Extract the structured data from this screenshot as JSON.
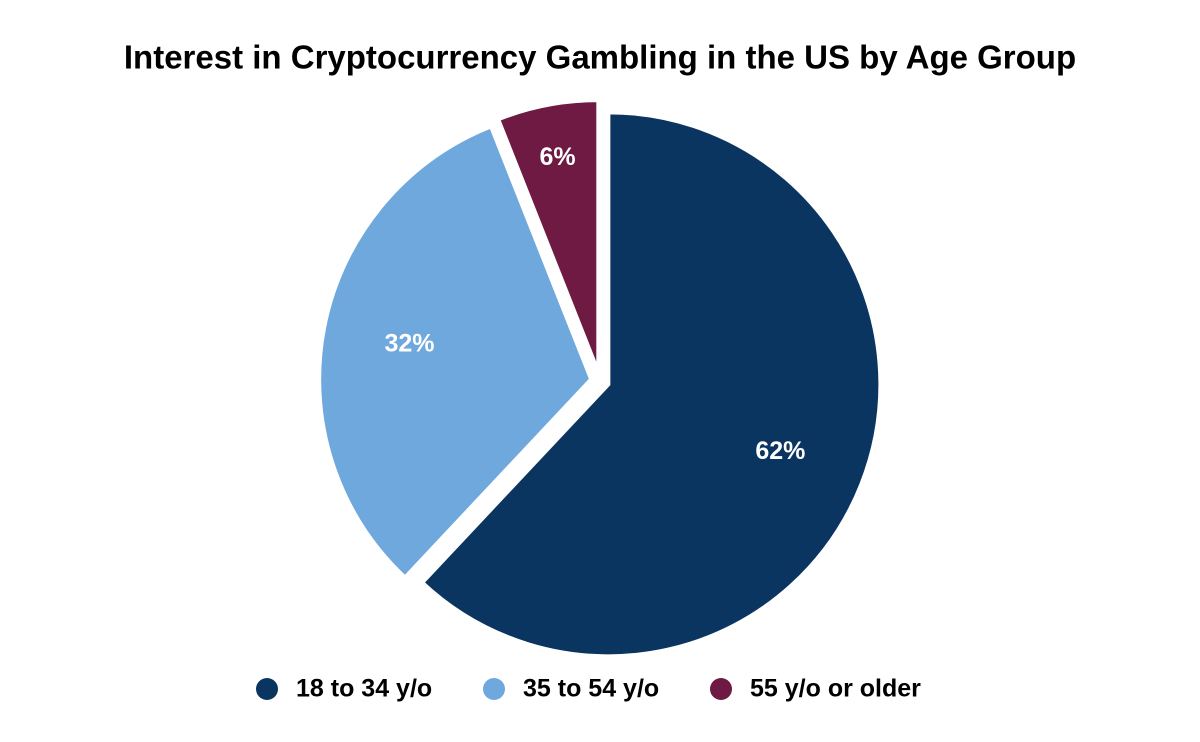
{
  "chart_data": {
    "type": "pie",
    "title": "Interest in Cryptocurrency Gambling in the US by Age Group",
    "categories": [
      "18 to 34 y/o",
      "35 to 54 y/o",
      "55 y/o or older"
    ],
    "values": [
      62,
      32,
      6
    ],
    "value_labels": [
      "62%",
      "32%",
      "6%"
    ],
    "colors": [
      "#0b3561",
      "#6fa8dc",
      "#6e1a43"
    ],
    "legend": "bottom"
  }
}
